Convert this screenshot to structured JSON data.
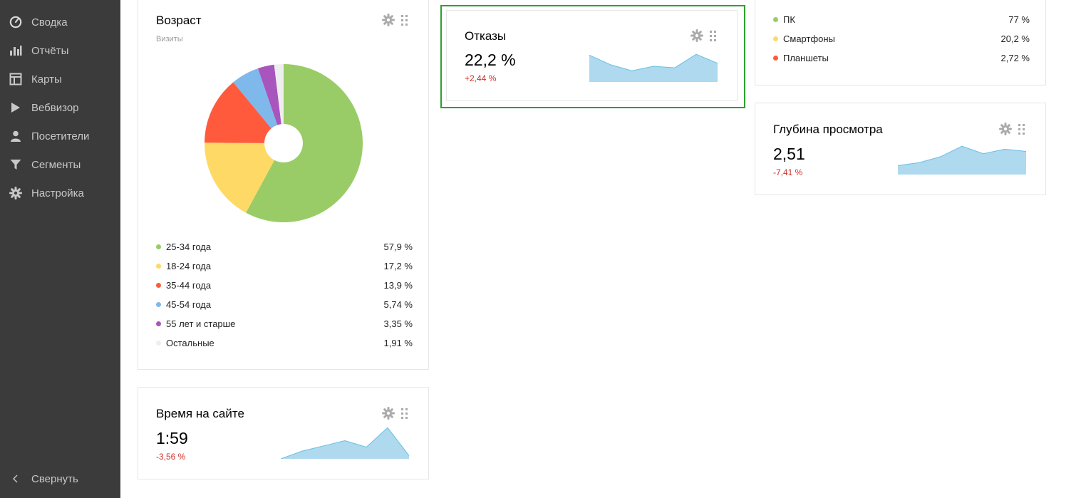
{
  "sidebar": {
    "items": [
      {
        "label": "Сводка",
        "icon": "dashboard-icon"
      },
      {
        "label": "Отчёты",
        "icon": "reports-icon"
      },
      {
        "label": "Карты",
        "icon": "maps-icon"
      },
      {
        "label": "Вебвизор",
        "icon": "play-icon"
      },
      {
        "label": "Посетители",
        "icon": "user-icon"
      },
      {
        "label": "Сегменты",
        "icon": "filter-icon"
      },
      {
        "label": "Настройка",
        "icon": "gear-icon"
      }
    ],
    "collapse_label": "Свернуть"
  },
  "age_widget": {
    "title": "Возраст",
    "subtitle": "Визиты",
    "legend": [
      {
        "label": "25-34 года",
        "value": "57,9 %",
        "color": "#99cc66"
      },
      {
        "label": "18-24 года",
        "value": "17,2 %",
        "color": "#ffd966"
      },
      {
        "label": "35-44 года",
        "value": "13,9 %",
        "color": "#ff5a3c"
      },
      {
        "label": "45-54 года",
        "value": "5,74 %",
        "color": "#7fb8ea"
      },
      {
        "label": "55 лет и старше",
        "value": "3,35 %",
        "color": "#a855bd"
      },
      {
        "label": "Остальные",
        "value": "1,91 %",
        "color": "#eeeeee"
      }
    ]
  },
  "time_widget": {
    "title": "Время на сайте",
    "value": "1:59",
    "delta": "-3,56 %"
  },
  "bounce_widget": {
    "title": "Отказы",
    "value": "22,2 %",
    "delta": "+2,44 %"
  },
  "devices_widget": {
    "legend": [
      {
        "label": "ПК",
        "value": "77 %",
        "color": "#99cc66"
      },
      {
        "label": "Смартфоны",
        "value": "20,2 %",
        "color": "#ffd966"
      },
      {
        "label": "Планшеты",
        "value": "2,72 %",
        "color": "#ff5a3c"
      }
    ]
  },
  "depth_widget": {
    "title": "Глубина просмотра",
    "value": "2,51",
    "delta": "-7,41 %"
  },
  "colors": {
    "sparkline_fill": "#aed9ee",
    "sparkline_line": "#6bbfe3",
    "selected_border": "#2ea02e",
    "negative": "#d0312d"
  },
  "chart_data": [
    {
      "type": "pie",
      "title": "Возраст",
      "subtitle": "Визиты",
      "categories": [
        "25-34 года",
        "18-24 года",
        "35-44 года",
        "45-54 года",
        "55 лет и старше",
        "Остальные"
      ],
      "values": [
        57.9,
        17.2,
        13.9,
        5.74,
        3.35,
        1.91
      ],
      "colors": [
        "#99cc66",
        "#ffd966",
        "#ff5a3c",
        "#7fb8ea",
        "#a855bd",
        "#eeeeee"
      ],
      "donut": true
    },
    {
      "type": "area",
      "id": "time",
      "values": [
        0,
        12,
        20,
        28,
        18,
        48,
        5
      ],
      "ylim": [
        0,
        55
      ]
    },
    {
      "type": "area",
      "id": "bounce",
      "values": [
        36,
        23,
        15,
        21,
        19,
        37,
        25
      ],
      "ylim": [
        0,
        42
      ]
    },
    {
      "type": "area",
      "id": "depth",
      "values": [
        12,
        16,
        24,
        38,
        28,
        34,
        31
      ],
      "ylim": [
        0,
        42
      ]
    }
  ]
}
